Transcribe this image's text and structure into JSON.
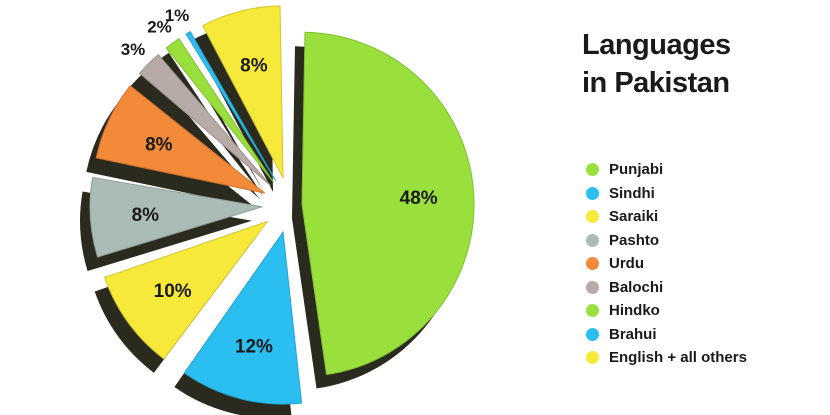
{
  "chart_data": {
    "type": "pie",
    "title": [
      "Languages",
      "in Pakistan"
    ],
    "legend_position": "right",
    "slices": [
      {
        "name": "Punjabi",
        "value": 48,
        "label": "48%",
        "color": "#99e03c"
      },
      {
        "name": "Sindhi",
        "value": 12,
        "label": "12%",
        "color": "#2bbef0"
      },
      {
        "name": "Saraiki",
        "value": 10,
        "label": "10%",
        "color": "#f7e93a"
      },
      {
        "name": "Pashto",
        "value": 8,
        "label": "8%",
        "color": "#a9bcb6"
      },
      {
        "name": "Urdu",
        "value": 8,
        "label": "8%",
        "color": "#f28a3a"
      },
      {
        "name": "Balochi",
        "value": 3,
        "label": "3%",
        "color": "#b8aaa7"
      },
      {
        "name": "Hindko",
        "value": 2,
        "label": "2%",
        "color": "#99e03c"
      },
      {
        "name": "Brahui",
        "value": 1,
        "label": "1%",
        "color": "#2bbef0"
      },
      {
        "name": "English + all others",
        "value": 8,
        "label": "8%",
        "color": "#f7e93a"
      }
    ]
  }
}
